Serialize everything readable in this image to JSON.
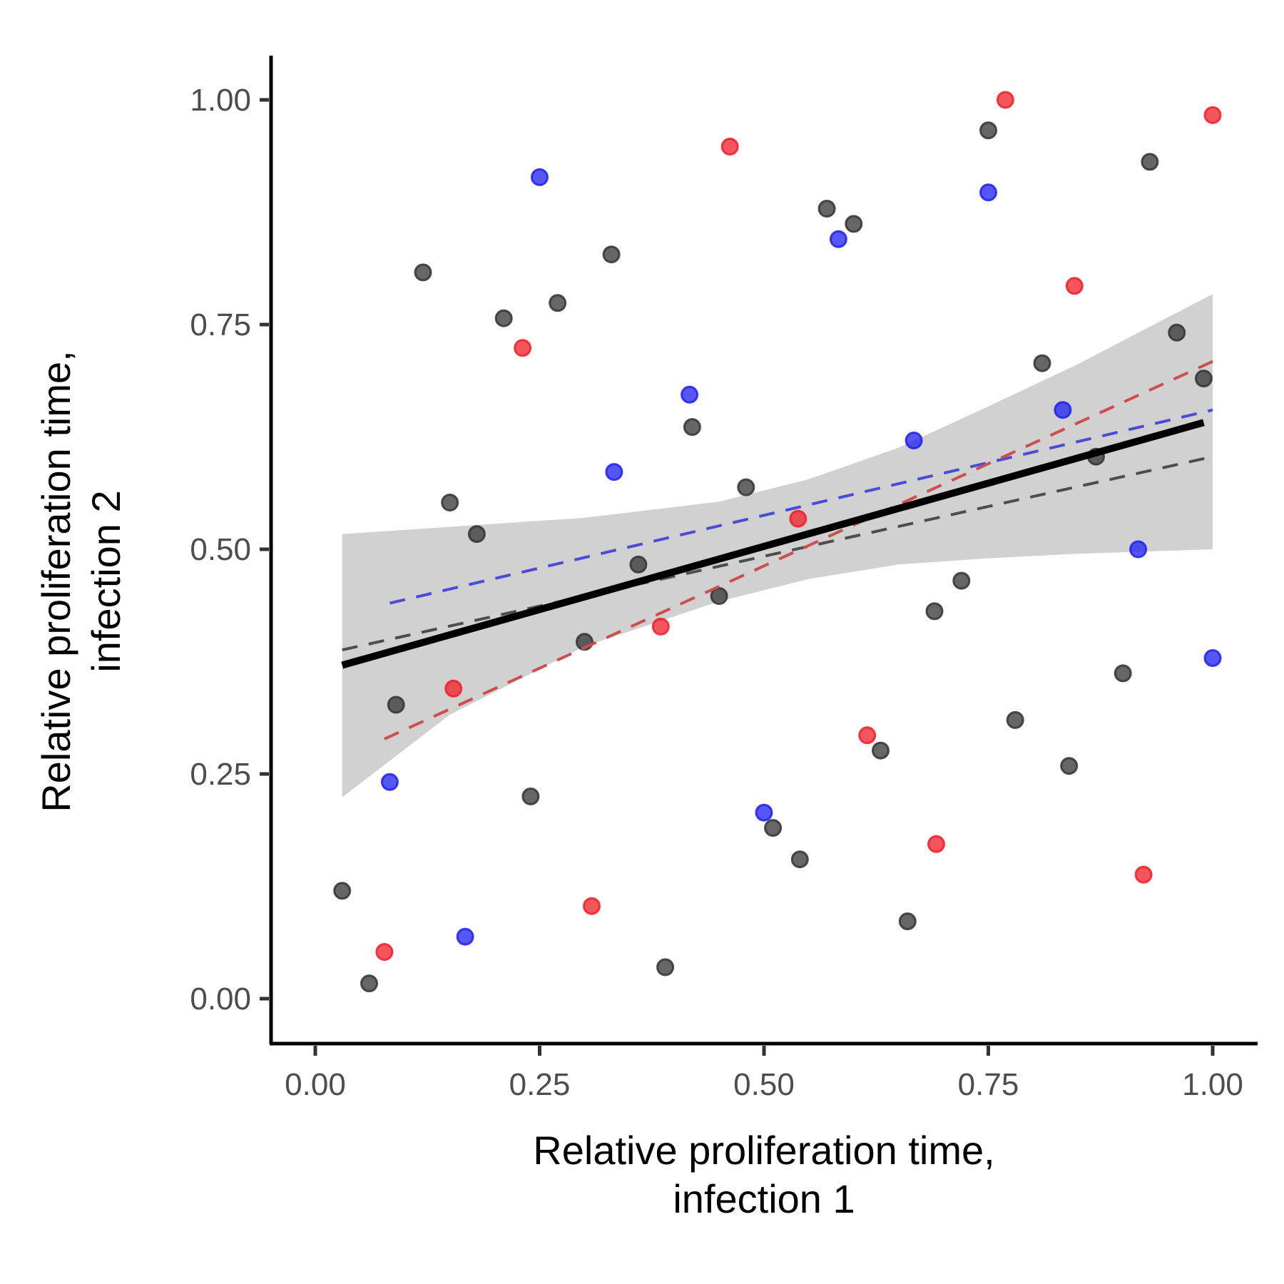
{
  "chart_data": {
    "type": "scatter",
    "xlabel": [
      "Relative proliferation time,",
      "infection 1"
    ],
    "ylabel": [
      "Relative proliferation time,",
      "infection 2"
    ],
    "xlim": [
      -0.05,
      1.05
    ],
    "ylim": [
      -0.05,
      1.05
    ],
    "x_ticks": [
      "0.00",
      "0.25",
      "0.50",
      "0.75",
      "1.00"
    ],
    "y_ticks": [
      "0.00",
      "0.25",
      "0.50",
      "0.75",
      "1.00"
    ],
    "grid": false,
    "series": [
      {
        "color": "#333333",
        "points": [
          [
            0.03,
            0.12
          ],
          [
            0.06,
            0.017
          ],
          [
            0.09,
            0.327
          ],
          [
            0.12,
            0.808
          ],
          [
            0.15,
            0.552
          ],
          [
            0.18,
            0.517
          ],
          [
            0.21,
            0.757
          ],
          [
            0.24,
            0.225
          ],
          [
            0.27,
            0.774
          ],
          [
            0.3,
            0.397
          ],
          [
            0.33,
            0.828
          ],
          [
            0.36,
            0.483
          ],
          [
            0.39,
            0.035
          ],
          [
            0.42,
            0.636
          ],
          [
            0.45,
            0.448
          ],
          [
            0.48,
            0.569
          ],
          [
            0.51,
            0.19
          ],
          [
            0.54,
            0.155
          ],
          [
            0.57,
            0.879
          ],
          [
            0.6,
            0.862
          ],
          [
            0.63,
            0.276
          ],
          [
            0.66,
            0.086
          ],
          [
            0.69,
            0.431
          ],
          [
            0.72,
            0.465
          ],
          [
            0.75,
            0.966
          ],
          [
            0.78,
            0.31
          ],
          [
            0.81,
            0.707
          ],
          [
            0.84,
            0.259
          ],
          [
            0.87,
            0.603
          ],
          [
            0.9,
            0.362
          ],
          [
            0.93,
            0.931
          ],
          [
            0.96,
            0.741
          ],
          [
            0.99,
            0.69
          ]
        ],
        "fit": [
          [
            0.03,
            0.388
          ],
          [
            1.0,
            0.603
          ]
        ]
      },
      {
        "color": "#1e1ef0",
        "points": [
          [
            0.083,
            0.241
          ],
          [
            0.167,
            0.069
          ],
          [
            0.25,
            0.914
          ],
          [
            0.333,
            0.586
          ],
          [
            0.417,
            0.672
          ],
          [
            0.5,
            0.207
          ],
          [
            0.583,
            0.845
          ],
          [
            0.667,
            0.621
          ],
          [
            0.75,
            0.897
          ],
          [
            0.833,
            0.655
          ],
          [
            0.917,
            0.5
          ],
          [
            1.0,
            0.379
          ]
        ],
        "fit": [
          [
            0.083,
            0.44
          ],
          [
            1.0,
            0.655
          ]
        ]
      },
      {
        "color": "#f01e28",
        "points": [
          [
            0.077,
            0.052
          ],
          [
            0.154,
            0.345
          ],
          [
            0.231,
            0.724
          ],
          [
            0.308,
            0.103
          ],
          [
            0.385,
            0.414
          ],
          [
            0.462,
            0.948
          ],
          [
            0.538,
            0.534
          ],
          [
            0.615,
            0.293
          ],
          [
            0.692,
            0.172
          ],
          [
            0.769,
            1.0
          ],
          [
            0.846,
            0.793
          ],
          [
            0.923,
            0.138
          ],
          [
            1.0,
            0.983
          ]
        ],
        "fit": [
          [
            0.077,
            0.289
          ],
          [
            1.0,
            0.709
          ]
        ]
      }
    ],
    "overall_fit": {
      "color": "#000000",
      "line": [
        [
          0.03,
          0.371
        ],
        [
          0.99,
          0.641
        ]
      ],
      "ci_band": [
        [
          0.03,
          0.517,
          0.224
        ],
        [
          0.15,
          0.525,
          0.316
        ],
        [
          0.3,
          0.535,
          0.392
        ],
        [
          0.45,
          0.553,
          0.442
        ],
        [
          0.55,
          0.578,
          0.467
        ],
        [
          0.65,
          0.613,
          0.483
        ],
        [
          0.75,
          0.659,
          0.49
        ],
        [
          0.85,
          0.706,
          0.495
        ],
        [
          1.0,
          0.784,
          0.5
        ]
      ]
    }
  }
}
